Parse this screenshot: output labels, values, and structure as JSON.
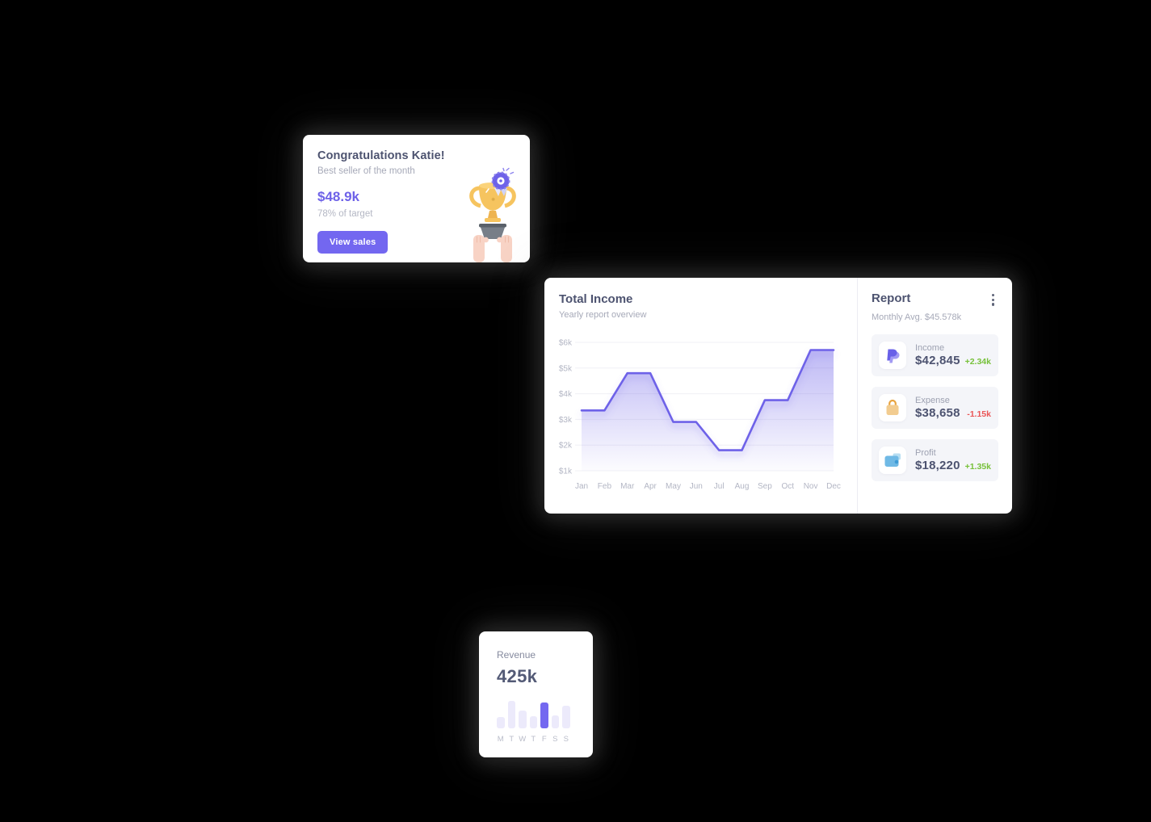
{
  "page": {
    "background": "#000000"
  },
  "colors": {
    "accent": "#6e62e8",
    "button": "#7367f0",
    "green": "#77c13a",
    "red": "#ea5455",
    "heading": "#4d5370",
    "muted": "#a6a9b8",
    "axis": "#b3b6c4",
    "grid": "#f0f0f5",
    "stat_bg": "#f4f5f9"
  },
  "congrats_card": {
    "title": "Congratulations Katie!",
    "subtitle": "Best seller of the month",
    "amount": "$48.9k",
    "target": "78% of target",
    "button_label": "View sales",
    "illustration": "trophy-held-by-hands"
  },
  "income_card": {
    "title": "Total Income",
    "subtitle": "Yearly report overview"
  },
  "report_panel": {
    "title": "Report",
    "subtitle": "Monthly Avg. $45.578k",
    "menu_icon": "kebab-menu-icon",
    "items": [
      {
        "icon": "paypal-icon",
        "label": "Income",
        "value": "$42,845",
        "change": "+2.34k",
        "direction": "up"
      },
      {
        "icon": "shopping-bag-icon",
        "label": "Expense",
        "value": "$38,658",
        "change": "-1.15k",
        "direction": "down"
      },
      {
        "icon": "wallet-icon",
        "label": "Profit",
        "value": "$18,220",
        "change": "+1.35k",
        "direction": "up"
      }
    ]
  },
  "revenue_card": {
    "title": "Revenue",
    "value": "425k"
  },
  "chart_data": [
    {
      "type": "area",
      "title": "Total Income",
      "subtitle": "Yearly report overview",
      "categories": [
        "Jan",
        "Feb",
        "Mar",
        "Apr",
        "May",
        "Jun",
        "Jul",
        "Aug",
        "Sep",
        "Oct",
        "Nov",
        "Dec"
      ],
      "values": [
        3.35,
        3.35,
        4.8,
        4.8,
        2.9,
        2.9,
        1.8,
        1.8,
        3.75,
        3.75,
        5.7,
        5.7
      ],
      "unit": "$k",
      "ylabel": "",
      "xlabel": "",
      "ylim": [
        1,
        6
      ],
      "y_ticks": [
        "$1k",
        "$2k",
        "$3k",
        "$4k",
        "$5k",
        "$6k"
      ],
      "grid": true,
      "legend": false,
      "line_color": "#6e62e8",
      "fill": "gradient-purple-to-transparent"
    },
    {
      "type": "bar",
      "title": "Revenue (weekly)",
      "categories": [
        "M",
        "T",
        "W",
        "T",
        "F",
        "S",
        "S"
      ],
      "values": [
        40,
        100,
        64,
        45,
        94,
        48,
        82
      ],
      "ylim": [
        0,
        100
      ],
      "grid": false,
      "legend": false,
      "highlight_index": 4,
      "bar_color": "#eceafb",
      "highlight_color": "#7468f0"
    }
  ]
}
